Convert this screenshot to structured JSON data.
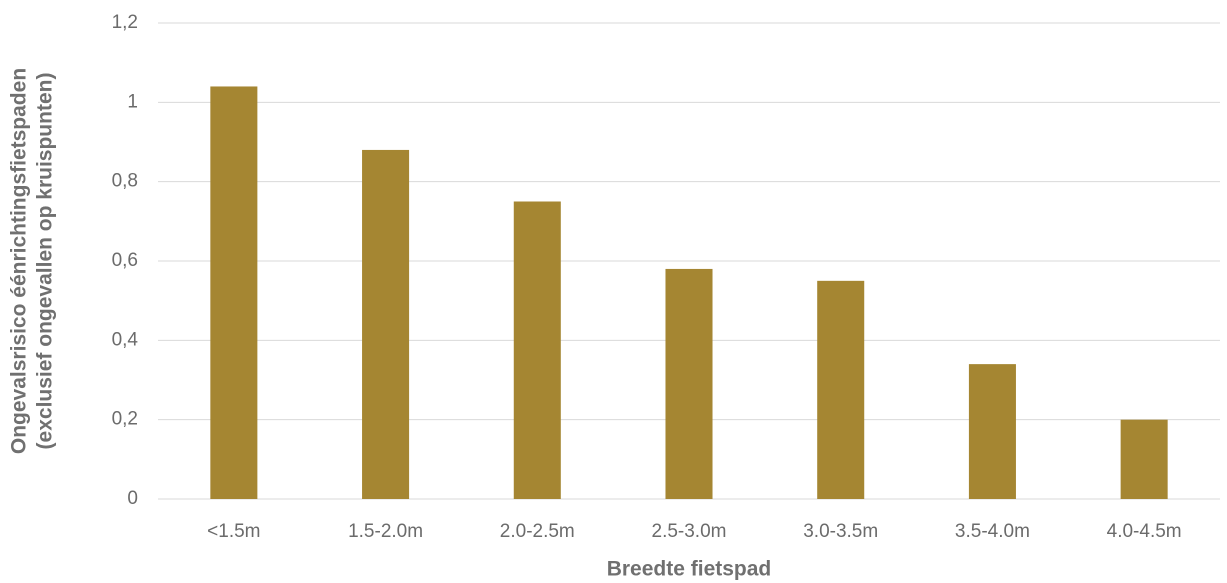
{
  "chart_data": {
    "type": "bar",
    "x_label": "Breedte fietspad",
    "y_label": [
      "Ongevalsrisico éénrichtingsfietspaden",
      "(exclusief ongevallen op kruispunten)"
    ],
    "categories": [
      "<1.5m",
      "1.5-2.0m",
      "2.0-2.5m",
      "2.5-3.0m",
      "3.0-3.5m",
      "3.5-4.0m",
      "4.0-4.5m"
    ],
    "values": [
      1.04,
      0.88,
      0.75,
      0.58,
      0.55,
      0.34,
      0.2
    ],
    "color": "#a58632",
    "ylim": [
      0,
      1.2
    ],
    "yticks": [
      0,
      {
        "value": 0.2,
        "label": "0,2"
      },
      {
        "value": 0.4,
        "label": "0,4"
      },
      {
        "value": 0.6,
        "label": "0,6"
      },
      {
        "value": 0.8,
        "label": "0,8"
      },
      1,
      {
        "value": 1.2,
        "label": "1,2"
      }
    ],
    "grid": true
  }
}
